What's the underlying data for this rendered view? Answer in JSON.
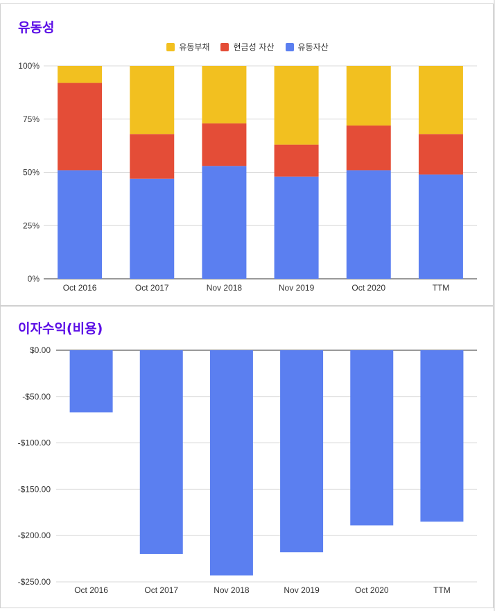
{
  "charts": [
    {
      "title": "유동성",
      "chart_data": {
        "type": "bar",
        "stacked": true,
        "percent": true,
        "title": "유동성",
        "categories": [
          "Oct 2016",
          "Oct 2017",
          "Nov 2018",
          "Nov 2019",
          "Oct 2020",
          "TTM"
        ],
        "series": [
          {
            "name": "유동자산",
            "color": "#5b7ff0",
            "values": [
              51,
              47,
              53,
              48,
              51,
              49
            ]
          },
          {
            "name": "현금성 자산",
            "color": "#e44d37",
            "values": [
              41,
              21,
              20,
              15,
              21,
              19
            ]
          },
          {
            "name": "유동부채",
            "color": "#f2c020",
            "values": [
              8,
              32,
              27,
              37,
              28,
              32
            ]
          }
        ],
        "legend_order": [
          "유동부채",
          "현금성 자산",
          "유동자산"
        ],
        "legend_position": "top-center",
        "y_ticks": [
          0,
          25,
          50,
          75,
          100
        ],
        "y_tick_labels": [
          "0%",
          "25%",
          "50%",
          "75%",
          "100%"
        ],
        "ylim": [
          0,
          100
        ],
        "grid": true,
        "xlabel": "",
        "ylabel": ""
      }
    },
    {
      "title": "이자수익(비용)",
      "chart_data": {
        "type": "bar",
        "title": "이자수익(비용)",
        "categories": [
          "Oct 2016",
          "Oct 2017",
          "Nov 2018",
          "Nov 2019",
          "Oct 2020",
          "TTM"
        ],
        "series": [
          {
            "name": "이자수익(비용)",
            "color": "#5b7ff0",
            "values": [
              -67,
              -220,
              -243,
              -218,
              -189,
              -185
            ]
          }
        ],
        "y_ticks": [
          0,
          -50,
          -100,
          -150,
          -200,
          -250
        ],
        "y_tick_labels": [
          "$0.00",
          "-$50.00",
          "-$100.00",
          "-$150.00",
          "-$200.00",
          "-$250.00"
        ],
        "ylim": [
          -250,
          0
        ],
        "grid": true,
        "xlabel": "",
        "ylabel": ""
      }
    }
  ]
}
